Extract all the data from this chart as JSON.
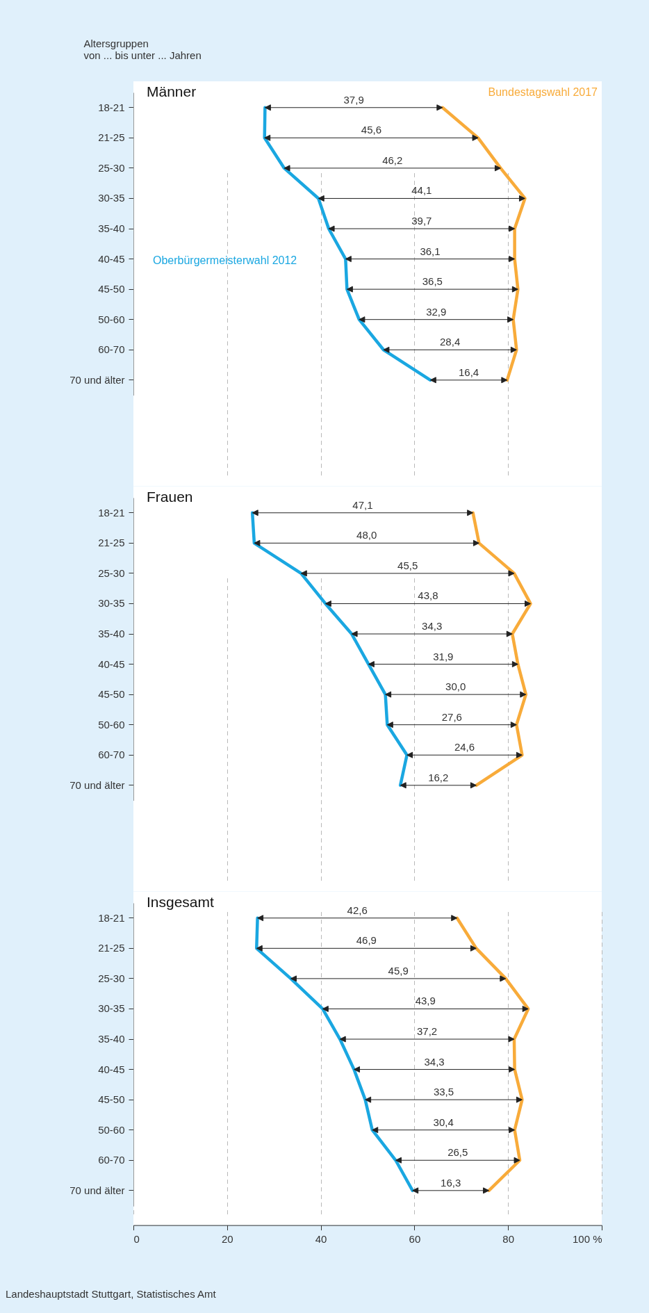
{
  "chart_data": [
    {
      "type": "line",
      "title": "Männer",
      "orientation": "horizontal",
      "ylabel": "Altersgruppen\nvon ... bis unter ... Jahren",
      "categories": [
        "18-21",
        "21-25",
        "25-30",
        "30-35",
        "35-40",
        "40-45",
        "45-50",
        "50-60",
        "60-70",
        "70 und älter"
      ],
      "series": [
        {
          "name": "Oberbürgermeisterwahl 2012",
          "color": "#1aa7e1",
          "values": [
            28.1,
            28.0,
            32.2,
            39.5,
            41.7,
            45.3,
            45.6,
            48.2,
            53.4,
            63.4
          ]
        },
        {
          "name": "Bundestagswahl 2017",
          "color": "#f8ab3a",
          "values": [
            66.0,
            73.6,
            78.4,
            83.6,
            81.4,
            81.4,
            82.1,
            81.1,
            81.8,
            79.8
          ]
        }
      ],
      "xlim": [
        0,
        100
      ],
      "xticks": [
        20,
        40,
        60,
        80
      ],
      "grid": "x",
      "tick_labels": "y",
      "annotations": [
        "37,9",
        "45,6",
        "46,2",
        "44,1",
        "39,7",
        "36,1",
        "36,5",
        "32,9",
        "28,4",
        "16,4"
      ]
    },
    {
      "type": "line",
      "title": "Frauen",
      "orientation": "horizontal",
      "categories": [
        "18-21",
        "21-25",
        "25-30",
        "30-35",
        "35-40",
        "40-45",
        "45-50",
        "50-60",
        "60-70",
        "70 und älter"
      ],
      "series": [
        {
          "color": "#1aa7e1",
          "values": [
            25.4,
            25.8,
            35.8,
            41.0,
            46.6,
            50.2,
            53.8,
            54.2,
            58.4,
            57.0
          ]
        },
        {
          "color": "#f8ab3a",
          "values": [
            72.5,
            73.8,
            81.3,
            84.8,
            80.9,
            82.1,
            83.8,
            81.8,
            83.0,
            73.2
          ]
        }
      ],
      "xlim": [
        0,
        100
      ],
      "xticks": [
        20,
        40,
        60,
        80
      ],
      "grid": "x",
      "tick_labels": "y",
      "annotations": [
        "47,1",
        "48,0",
        "45,5",
        "43,8",
        "34,3",
        "31,9",
        "30,0",
        "27,6",
        "24,6",
        "16,2"
      ]
    },
    {
      "type": "line",
      "title": "Insgesamt",
      "orientation": "horizontal",
      "categories": [
        "18-21",
        "21-25",
        "25-30",
        "30-35",
        "35-40",
        "40-45",
        "45-50",
        "50-60",
        "60-70",
        "70 und älter"
      ],
      "series": [
        {
          "color": "#1aa7e1",
          "values": [
            26.5,
            26.3,
            33.6,
            40.4,
            44.1,
            47.1,
            49.5,
            51.0,
            56.0,
            59.6
          ]
        },
        {
          "color": "#f8ab3a",
          "values": [
            69.1,
            73.2,
            79.5,
            84.3,
            81.3,
            81.4,
            83.0,
            81.4,
            82.5,
            75.9
          ]
        }
      ],
      "xlim": [
        0,
        100
      ],
      "xticks": [
        0,
        20,
        40,
        60,
        80,
        {
          "value": 100,
          "label": "100 %"
        }
      ],
      "grid": "x",
      "annotations": [
        "42,6",
        "46,9",
        "45,9",
        "43,9",
        "37,2",
        "34,3",
        "33,5",
        "30,4",
        "26,5",
        "16,3",
        "Landeshauptstadt Stuttgart, Statistisches Amt"
      ]
    }
  ]
}
